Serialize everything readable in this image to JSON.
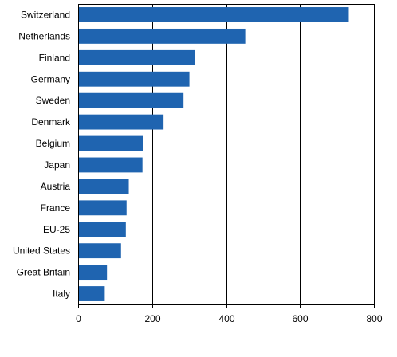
{
  "chart_data": {
    "type": "bar",
    "orientation": "horizontal",
    "categories": [
      "Switzerland",
      "Netherlands",
      "Finland",
      "Germany",
      "Sweden",
      "Denmark",
      "Belgium",
      "Japan",
      "Austria",
      "France",
      "EU-25",
      "United States",
      "Great Britain",
      "Italy"
    ],
    "values": [
      732,
      452,
      316,
      301,
      285,
      231,
      176,
      174,
      137,
      131,
      129,
      116,
      78,
      72
    ],
    "xlim": [
      0,
      800
    ],
    "xticks": [
      "0",
      "200",
      "400",
      "600",
      "800"
    ],
    "bar_color": "#1f64b0",
    "grid": "vertical",
    "title": "",
    "xlabel": "",
    "ylabel": ""
  }
}
